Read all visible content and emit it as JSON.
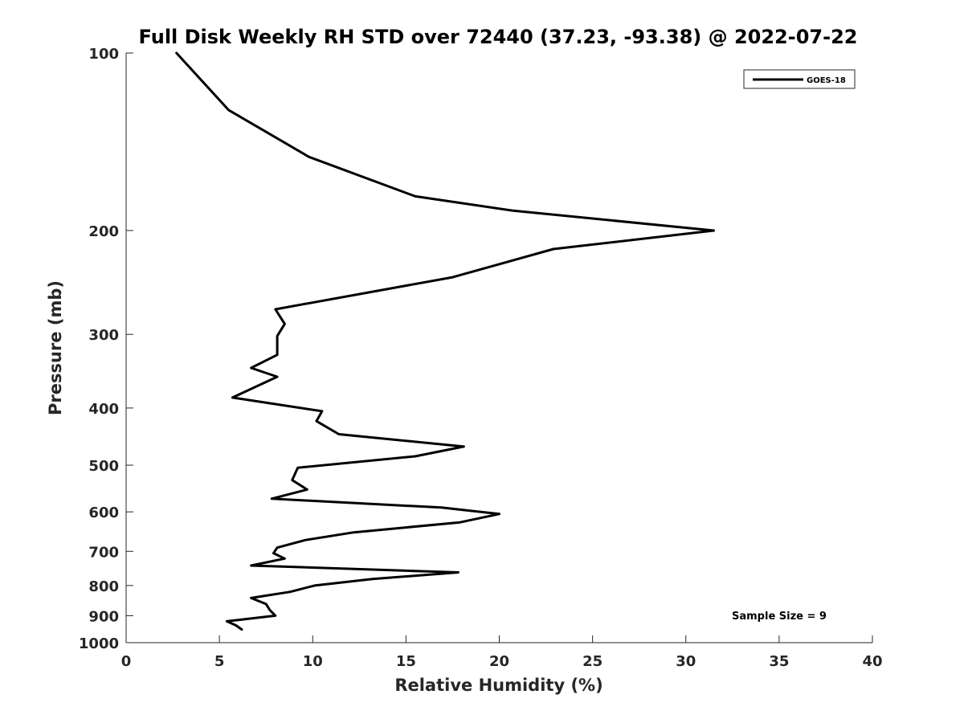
{
  "chart_data": {
    "type": "line",
    "title": "Full Disk Weekly RH STD over 72440 (37.23, -93.38) @ 2022-07-22",
    "xlabel": "Relative Humidity (%)",
    "ylabel": "Pressure (mb)",
    "xlim": [
      0,
      40
    ],
    "ylim": [
      1000,
      100
    ],
    "yscale": "log",
    "xticks": [
      0,
      5,
      10,
      15,
      20,
      25,
      30,
      35,
      40
    ],
    "yticks": [
      100,
      200,
      300,
      400,
      500,
      600,
      700,
      800,
      900,
      1000
    ],
    "grid": false,
    "legend_position": "top-right",
    "annotation": "Sample Size = 9",
    "series": [
      {
        "name": "GOES-18",
        "color": "#000000",
        "points": [
          [
            2.7,
            100
          ],
          [
            5.5,
            125
          ],
          [
            9.8,
            150
          ],
          [
            15.5,
            175
          ],
          [
            20.7,
            185
          ],
          [
            31.5,
            200
          ],
          [
            22.9,
            215
          ],
          [
            17.5,
            240
          ],
          [
            8.0,
            272
          ],
          [
            8.5,
            288
          ],
          [
            8.1,
            302
          ],
          [
            8.1,
            325
          ],
          [
            6.7,
            342
          ],
          [
            8.1,
            354
          ],
          [
            5.7,
            384
          ],
          [
            10.5,
            405
          ],
          [
            10.2,
            421
          ],
          [
            11.4,
            443
          ],
          [
            18.1,
            465
          ],
          [
            15.5,
            483
          ],
          [
            9.2,
            505
          ],
          [
            8.9,
            530
          ],
          [
            9.7,
            550
          ],
          [
            7.8,
            570
          ],
          [
            16.9,
            590
          ],
          [
            20.0,
            605
          ],
          [
            17.9,
            625
          ],
          [
            12.2,
            650
          ],
          [
            9.6,
            670
          ],
          [
            8.1,
            690
          ],
          [
            7.9,
            705
          ],
          [
            8.5,
            720
          ],
          [
            6.7,
            740
          ],
          [
            17.8,
            760
          ],
          [
            13.2,
            780
          ],
          [
            10.1,
            800
          ],
          [
            8.8,
            820
          ],
          [
            6.7,
            840
          ],
          [
            7.5,
            860
          ],
          [
            7.7,
            880
          ],
          [
            8.0,
            900
          ],
          [
            5.4,
            920
          ],
          [
            5.9,
            935
          ],
          [
            6.2,
            950
          ]
        ]
      }
    ]
  }
}
